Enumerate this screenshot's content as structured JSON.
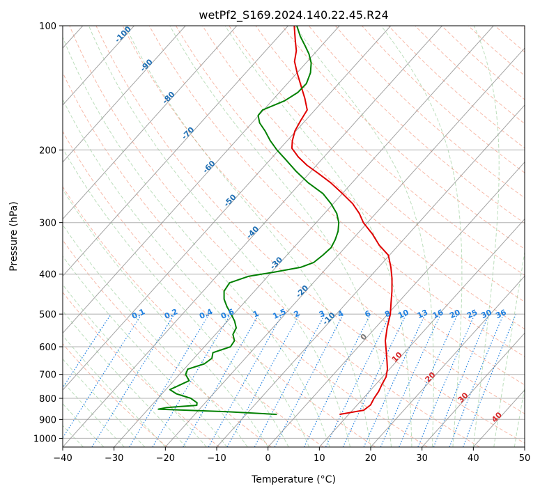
{
  "chart_data": {
    "type": "skew-t",
    "title": "wetPf2_S169.2024.140.22.45.R24",
    "xlabel": "Temperature (°C)",
    "ylabel": "Pressure (hPa)",
    "xlim": [
      -40,
      50
    ],
    "ylim": [
      1050,
      100
    ],
    "x_ticks": [
      -40,
      -30,
      -20,
      -10,
      0,
      10,
      20,
      30,
      40,
      50
    ],
    "y_ticks": [
      100,
      200,
      300,
      400,
      500,
      600,
      700,
      800,
      900,
      1000
    ],
    "series": [
      {
        "color": "#e00000",
        "points": [
          [
            875,
            8.2
          ],
          [
            855,
            12.2
          ],
          [
            830,
            12.6
          ],
          [
            800,
            12.1
          ],
          [
            770,
            11.8
          ],
          [
            740,
            11.2
          ],
          [
            710,
            10.7
          ],
          [
            680,
            9.6
          ],
          [
            650,
            8.1
          ],
          [
            620,
            6.5
          ],
          [
            580,
            4.2
          ],
          [
            540,
            2.3
          ],
          [
            500,
            0.5
          ],
          [
            470,
            -1.3
          ],
          [
            440,
            -3.2
          ],
          [
            410,
            -5.4
          ],
          [
            385,
            -7.6
          ],
          [
            360,
            -10.2
          ],
          [
            340,
            -13.8
          ],
          [
            320,
            -17.0
          ],
          [
            300,
            -20.8
          ],
          [
            285,
            -23.2
          ],
          [
            270,
            -26.2
          ],
          [
            255,
            -30.0
          ],
          [
            240,
            -34.2
          ],
          [
            228,
            -38.2
          ],
          [
            218,
            -41.8
          ],
          [
            208,
            -45.0
          ],
          [
            198,
            -47.8
          ],
          [
            190,
            -49.0
          ],
          [
            180,
            -50.2
          ],
          [
            170,
            -50.9
          ],
          [
            160,
            -51.5
          ],
          [
            150,
            -54.0
          ],
          [
            140,
            -56.9
          ],
          [
            130,
            -60.0
          ],
          [
            122,
            -62.5
          ],
          [
            115,
            -64.0
          ],
          [
            108,
            -66.2
          ],
          [
            100,
            -68.8
          ]
        ]
      },
      {
        "color": "#008000",
        "points": [
          [
            875,
            -4.0
          ],
          [
            862,
            -14.2
          ],
          [
            850,
            -28.0
          ],
          [
            842,
            -26.6
          ],
          [
            832,
            -21.2
          ],
          [
            820,
            -21.6
          ],
          [
            800,
            -23.6
          ],
          [
            780,
            -27.2
          ],
          [
            762,
            -29.2
          ],
          [
            745,
            -28.2
          ],
          [
            725,
            -27.0
          ],
          [
            700,
            -28.8
          ],
          [
            680,
            -29.3
          ],
          [
            660,
            -27.0
          ],
          [
            640,
            -26.5
          ],
          [
            620,
            -27.3
          ],
          [
            600,
            -24.9
          ],
          [
            580,
            -25.2
          ],
          [
            560,
            -26.6
          ],
          [
            540,
            -27.1
          ],
          [
            520,
            -28.6
          ],
          [
            500,
            -30.5
          ],
          [
            480,
            -32.6
          ],
          [
            460,
            -34.5
          ],
          [
            440,
            -35.9
          ],
          [
            420,
            -36.3
          ],
          [
            405,
            -33.8
          ],
          [
            395,
            -29.3
          ],
          [
            385,
            -25.2
          ],
          [
            375,
            -23.5
          ],
          [
            360,
            -23.0
          ],
          [
            345,
            -22.7
          ],
          [
            330,
            -23.3
          ],
          [
            315,
            -24.2
          ],
          [
            300,
            -25.6
          ],
          [
            285,
            -27.6
          ],
          [
            270,
            -30.4
          ],
          [
            255,
            -33.8
          ],
          [
            240,
            -38.6
          ],
          [
            225,
            -43.0
          ],
          [
            210,
            -47.3
          ],
          [
            200,
            -50.4
          ],
          [
            190,
            -53.3
          ],
          [
            180,
            -56.0
          ],
          [
            172,
            -58.5
          ],
          [
            165,
            -60.1
          ],
          [
            160,
            -60.2
          ],
          [
            152,
            -57.5
          ],
          [
            145,
            -56.4
          ],
          [
            138,
            -56.3
          ],
          [
            130,
            -57.4
          ],
          [
            123,
            -59.0
          ],
          [
            117,
            -61.0
          ],
          [
            112,
            -63.1
          ],
          [
            106,
            -65.8
          ],
          [
            100,
            -68.3
          ]
        ]
      }
    ],
    "dry_adiabat_labels": [
      "-100",
      "-90",
      "-80",
      "-70",
      "-60",
      "-50",
      "-40",
      "-30",
      "-20",
      "-10",
      "0",
      "10",
      "20",
      "30",
      "40"
    ],
    "mixing_ratio_labels": [
      "0.1",
      "0.2",
      "0.4",
      "0.6",
      "1",
      "1.5",
      "2",
      "3",
      "4",
      "6",
      "8",
      "10",
      "13",
      "16",
      "20",
      "25",
      "30",
      "36"
    ],
    "grid": true
  }
}
